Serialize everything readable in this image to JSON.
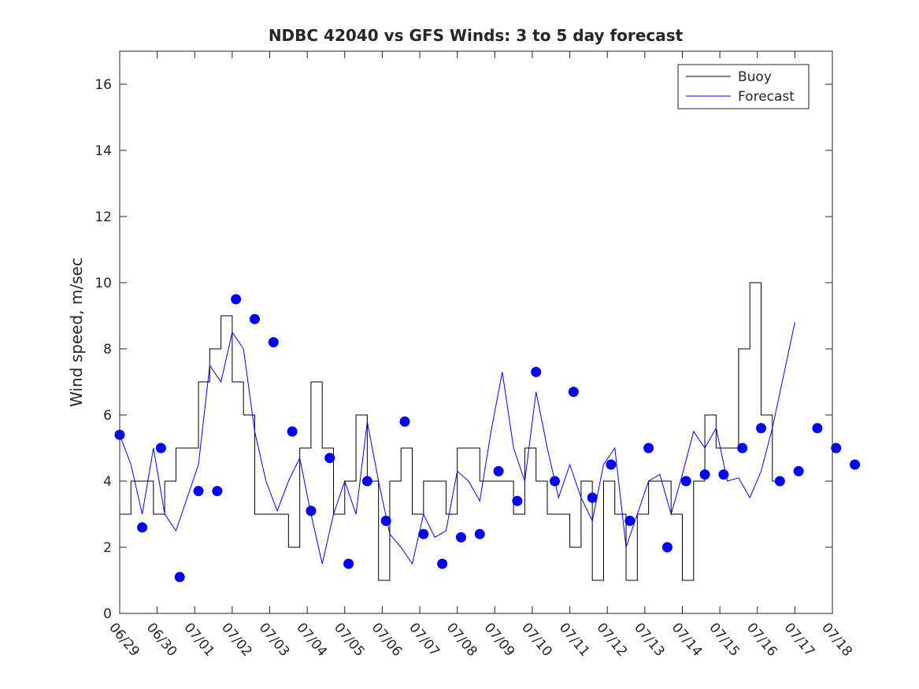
{
  "chart_data": {
    "type": "line",
    "title": "NDBC 42040 vs GFS Winds: 3 to 5 day forecast",
    "xlabel": "",
    "ylabel": "Wind speed, m/sec",
    "xlim": [
      "06/29",
      "07/18"
    ],
    "ylim": [
      0,
      17
    ],
    "x_tick_labels": [
      "06/29",
      "06/30",
      "07/01",
      "07/02",
      "07/03",
      "07/04",
      "07/05",
      "07/06",
      "07/07",
      "07/08",
      "07/09",
      "07/10",
      "07/11",
      "07/12",
      "07/13",
      "07/14",
      "07/15",
      "07/16",
      "07/17",
      "07/18"
    ],
    "y_ticks": [
      0,
      2,
      4,
      6,
      8,
      10,
      12,
      14,
      16
    ],
    "grid": false,
    "legend": {
      "position": "top-right",
      "entries": [
        {
          "name": "Buoy",
          "color": "#000000"
        },
        {
          "name": "Forecast",
          "color": "#0000ff"
        }
      ]
    },
    "colors": {
      "buoy": "#000000",
      "forecast": "#0000ff"
    },
    "series": [
      {
        "name": "Buoy",
        "x_days": [
          0.0,
          0.3,
          0.6,
          0.9,
          1.2,
          1.5,
          1.8,
          2.1,
          2.4,
          2.7,
          3.0,
          3.3,
          3.6,
          3.9,
          4.2,
          4.5,
          4.8,
          5.1,
          5.4,
          5.7,
          6.0,
          6.3,
          6.6,
          6.9,
          7.2,
          7.5,
          7.8,
          8.1,
          8.4,
          8.7,
          9.0,
          9.3,
          9.6,
          9.9,
          10.2,
          10.5,
          10.8,
          11.1,
          11.4,
          11.7,
          12.0,
          12.3,
          12.6,
          12.9,
          13.2,
          13.5,
          13.8,
          14.1,
          14.4,
          14.7,
          15.0,
          15.3,
          15.6,
          15.9,
          16.2,
          16.5,
          16.8,
          17.1,
          17.4
        ],
        "values": [
          3,
          4,
          4,
          3,
          4,
          5,
          5,
          7,
          8,
          9,
          7,
          6,
          3,
          3,
          3,
          2,
          5,
          7,
          5,
          3,
          4,
          6,
          4,
          1,
          4,
          5,
          3,
          4,
          4,
          3,
          5,
          5,
          4,
          4,
          4,
          3,
          5,
          4,
          3,
          3,
          2,
          4,
          1,
          4,
          3,
          1,
          3,
          4,
          4,
          3,
          1,
          4,
          6,
          5,
          5,
          8,
          10,
          6,
          4
        ]
      },
      {
        "name": "Forecast",
        "x_days": [
          0.0,
          0.3,
          0.6,
          0.9,
          1.2,
          1.5,
          1.8,
          2.1,
          2.4,
          2.7,
          3.0,
          3.3,
          3.6,
          3.9,
          4.2,
          4.5,
          4.8,
          5.1,
          5.4,
          5.7,
          6.0,
          6.3,
          6.6,
          6.9,
          7.2,
          7.5,
          7.8,
          8.1,
          8.4,
          8.7,
          9.0,
          9.3,
          9.6,
          9.9,
          10.2,
          10.5,
          10.8,
          11.1,
          11.4,
          11.7,
          12.0,
          12.3,
          12.6,
          12.9,
          13.2,
          13.5,
          13.8,
          14.1,
          14.4,
          14.7,
          15.0,
          15.3,
          15.6,
          15.9,
          16.2,
          16.5,
          16.8,
          17.1,
          17.4,
          18.0
        ],
        "values": [
          5.4,
          4.5,
          3.0,
          5.0,
          3.0,
          2.5,
          3.5,
          4.5,
          7.5,
          7.0,
          8.5,
          8.0,
          5.5,
          4.0,
          3.1,
          4.0,
          4.7,
          3.0,
          1.5,
          3.0,
          4.0,
          3.0,
          5.8,
          4.0,
          2.4,
          2.0,
          1.5,
          3.0,
          2.3,
          2.5,
          4.3,
          4.0,
          3.4,
          5.5,
          7.3,
          5.0,
          4.0,
          6.7,
          5.0,
          3.5,
          4.5,
          3.5,
          2.8,
          4.5,
          5.0,
          2.0,
          3.0,
          4.0,
          4.2,
          3.0,
          4.2,
          5.5,
          5.0,
          5.6,
          4.0,
          4.1,
          3.5,
          4.3,
          5.6,
          8.8
        ]
      },
      {
        "name": "",
        "kind": "markers",
        "x_days": [
          0.0,
          0.6,
          1.1,
          1.6,
          2.1,
          2.6,
          3.1,
          3.6,
          4.1,
          4.6,
          5.1,
          5.6,
          6.1,
          6.6,
          7.1,
          7.6,
          8.1,
          8.6,
          9.1,
          9.6,
          10.1,
          10.6,
          11.1,
          11.6,
          12.1,
          12.6,
          13.1,
          13.6,
          14.1,
          14.6,
          15.1,
          15.6,
          16.1,
          16.6,
          17.1,
          17.6,
          18.1,
          18.6,
          19.1,
          19.6
        ],
        "values": [
          5.4,
          2.6,
          5.0,
          1.1,
          3.7,
          3.7,
          9.5,
          8.9,
          8.2,
          5.5,
          3.1,
          4.7,
          1.5,
          4.0,
          2.8,
          5.8,
          2.4,
          1.5,
          2.3,
          2.4,
          4.3,
          3.4,
          7.3,
          4.0,
          6.7,
          3.5,
          4.5,
          2.8,
          5.0,
          2.0,
          4.0,
          4.2,
          4.2,
          5.0,
          5.6,
          4.0,
          4.3,
          5.6,
          5.0,
          4.5
        ]
      }
    ]
  }
}
